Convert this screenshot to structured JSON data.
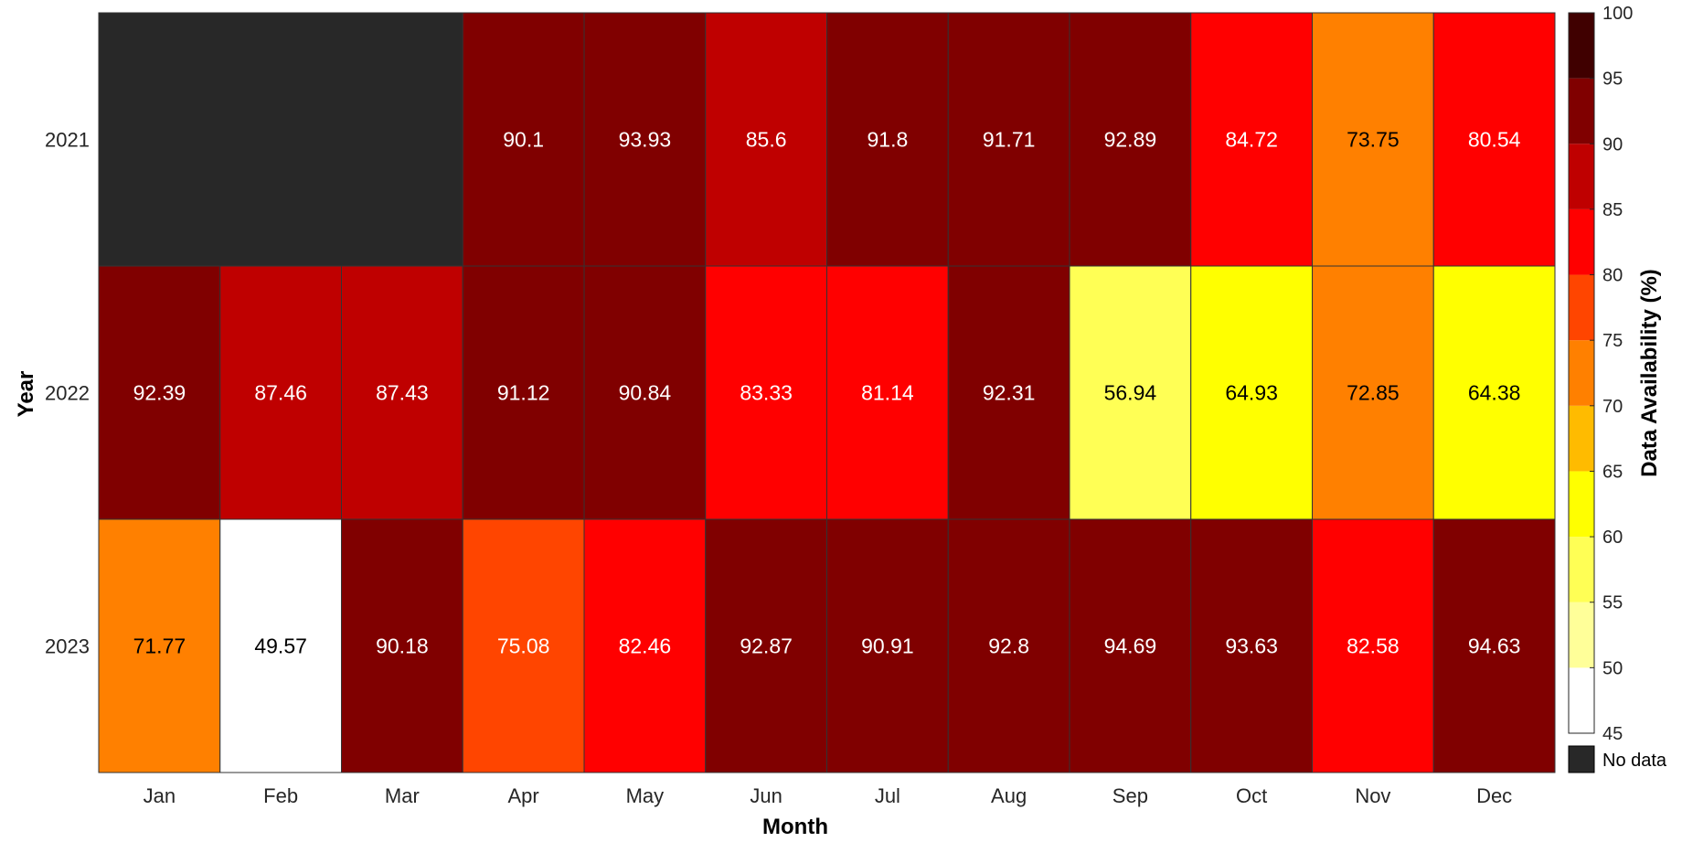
{
  "chart_data": {
    "type": "heatmap",
    "xlabel": "Month",
    "ylabel": "Year",
    "x_categories": [
      "Jan",
      "Feb",
      "Mar",
      "Apr",
      "May",
      "Jun",
      "Jul",
      "Aug",
      "Sep",
      "Oct",
      "Nov",
      "Dec"
    ],
    "y_categories": [
      "2021",
      "2022",
      "2023"
    ],
    "values": [
      [
        null,
        null,
        null,
        90.1,
        93.93,
        85.6,
        91.8,
        91.71,
        92.89,
        84.72,
        73.75,
        80.54
      ],
      [
        92.39,
        87.46,
        87.43,
        91.12,
        90.84,
        83.33,
        81.14,
        92.31,
        56.94,
        64.93,
        72.85,
        64.38
      ],
      [
        71.77,
        49.57,
        90.18,
        75.08,
        82.46,
        92.87,
        90.91,
        92.8,
        94.69,
        93.63,
        82.58,
        94.63
      ]
    ],
    "colorbar": {
      "label": "Data Availability (%)",
      "range": [
        45,
        100
      ],
      "ticks": [
        45,
        50,
        55,
        60,
        65,
        70,
        75,
        80,
        85,
        90,
        95,
        100
      ],
      "bins": [
        {
          "from": 45,
          "to": 50,
          "color": "#ffffff"
        },
        {
          "from": 50,
          "to": 55,
          "color": "#ffff99"
        },
        {
          "from": 55,
          "to": 60,
          "color": "#ffff55"
        },
        {
          "from": 60,
          "to": 65,
          "color": "#ffff00"
        },
        {
          "from": 65,
          "to": 70,
          "color": "#ffbb00"
        },
        {
          "from": 70,
          "to": 75,
          "color": "#ff8000"
        },
        {
          "from": 75,
          "to": 80,
          "color": "#ff4500"
        },
        {
          "from": 80,
          "to": 85,
          "color": "#ff0000"
        },
        {
          "from": 85,
          "to": 90,
          "color": "#bf0000"
        },
        {
          "from": 90,
          "to": 95,
          "color": "#800000"
        },
        {
          "from": 95,
          "to": 100,
          "color": "#400000"
        }
      ]
    },
    "no_data_label": "No data",
    "no_data_color": "#282828",
    "grid": true
  }
}
